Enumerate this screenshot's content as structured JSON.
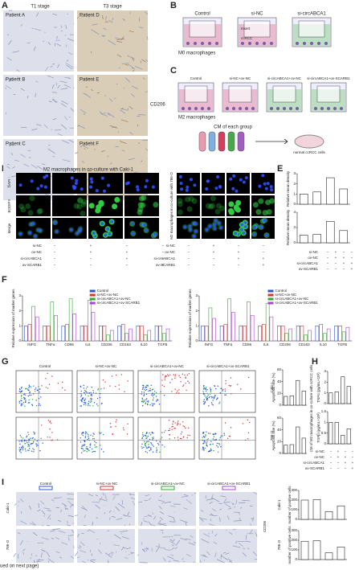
{
  "panel_labels": [
    "A",
    "B",
    "C",
    "D",
    "E",
    "F",
    "G",
    "H",
    "I"
  ],
  "A": {
    "columns": [
      "T1 stage",
      "T3 stage"
    ],
    "patients": [
      "Patient A",
      "Patient D",
      "Patient B",
      "Patient E",
      "Patient C",
      "Patient F"
    ],
    "marker": "CD206"
  },
  "B": {
    "groups": [
      "Control",
      "si-NC",
      "si-circABCA1"
    ],
    "cells": "M0 macrophages",
    "parts": [
      "Insert",
      "ccRCC"
    ]
  },
  "C": {
    "groups": [
      "Control",
      "si-NC+ov-NC",
      "si-circABCA1+ov-NC",
      "si-circABCA1+ov-SCARB1"
    ],
    "cells": "M2 macrophages",
    "cm": "CM of each group",
    "target": "normal ccRCC cells"
  },
  "D": {
    "rows": [
      "DAPI",
      "BODIPY",
      "Merge"
    ],
    "titles": [
      "M2 macrophages in co-culture with Caki-1",
      "M2 macrophages in co-culture with 786-O"
    ]
  },
  "conditions": [
    {
      "name": "si-NC",
      "signs": [
        "−",
        "+",
        "−",
        "−"
      ]
    },
    {
      "name": "ov-NC",
      "signs": [
        "−",
        "+",
        "+",
        "−"
      ]
    },
    {
      "name": "si-circABCA1",
      "signs": [
        "−",
        "−",
        "+",
        "+"
      ]
    },
    {
      "name": "ov-SCARB1",
      "signs": [
        "−",
        "−",
        "−",
        "+"
      ]
    }
  ],
  "G": {
    "groups": [
      "Control",
      "si-NC+ov-NC",
      "si-circABCA1+ov-NC",
      "si-circABCA1+ov-SCARB1"
    ],
    "rows": [
      "Caki-1",
      "786-O"
    ]
  },
  "H": {
    "title": "CM of M2 macrophages in co-culture with ccRCC cells"
  },
  "I": {
    "groups": [
      "Control",
      "si-NC+ov-NC",
      "si-circABCA1+ov-NC",
      "si-circABCA1+ov-SCARB1"
    ],
    "rows": [
      "Caki-1",
      "786-O"
    ],
    "marker": "CD206"
  },
  "footer": "ued on next page)",
  "chart_data": [
    {
      "type": "bar",
      "ylabel": "Relative mean density",
      "values": [
        1.0,
        1.2,
        2.6,
        1.5
      ],
      "colors": [
        "#ffffff",
        "#ffffff",
        "#ffffff",
        "#ffffff"
      ],
      "ylim": [
        0,
        3
      ],
      "yticks": [
        0,
        1,
        2,
        3
      ]
    },
    {
      "type": "bar",
      "ylabel": "Relative mean density",
      "values": [
        1.0,
        1.1,
        2.8,
        1.6
      ],
      "colors": [
        "#ffffff",
        "#ffffff",
        "#ffffff",
        "#ffffff"
      ],
      "ylim": [
        0,
        4
      ],
      "yticks": [
        0,
        2,
        4
      ]
    },
    {
      "type": "grouped",
      "ylabel": "Relative expression of marker genes",
      "categories": [
        "INFG",
        "TNFα",
        "CD86",
        "IL6",
        "CD206",
        "CD163",
        "IL10",
        "TGFB"
      ],
      "ylim": [
        0,
        3
      ],
      "yticks": [
        0,
        1,
        2,
        3
      ],
      "series": [
        {
          "name": "Control",
          "color": "#3355cc",
          "values": [
            1,
            1,
            1,
            1,
            1,
            1,
            1,
            1
          ]
        },
        {
          "name": "si-NC+ov-NC",
          "color": "#dd3333",
          "values": [
            1.1,
            1.0,
            1.1,
            1.0,
            1.0,
            1.1,
            1.0,
            1.0
          ]
        },
        {
          "name": "si-circABCA1+ov-NC",
          "color": "#33aa33",
          "values": [
            2.3,
            2.6,
            2.8,
            2.7,
            0.4,
            0.5,
            0.4,
            0.5
          ]
        },
        {
          "name": "si-circABCA1+ov-SCARB1",
          "color": "#aa44cc",
          "values": [
            1.6,
            1.7,
            1.8,
            1.9,
            0.7,
            0.8,
            0.7,
            0.8
          ]
        }
      ]
    },
    {
      "type": "grouped",
      "ylabel": "Relative expression of marker genes",
      "categories": [
        "INFG",
        "TNFα",
        "CD86",
        "IL6",
        "CD206",
        "CD163",
        "IL10",
        "TGFB"
      ],
      "ylim": [
        0,
        3
      ],
      "yticks": [
        0,
        1,
        2,
        3
      ],
      "series": [
        {
          "name": "Control",
          "color": "#3355cc",
          "values": [
            1,
            1,
            1,
            1,
            1,
            1,
            1,
            1
          ]
        },
        {
          "name": "si-NC+ov-NC",
          "color": "#dd3333",
          "values": [
            1.0,
            1.1,
            1.0,
            1.1,
            1.0,
            1.0,
            1.1,
            1.0
          ]
        },
        {
          "name": "si-circABCA1+ov-NC",
          "color": "#33aa33",
          "values": [
            2.2,
            2.8,
            2.6,
            2.5,
            0.5,
            0.4,
            0.5,
            0.6
          ]
        },
        {
          "name": "si-circABCA1+ov-SCARB1",
          "color": "#aa44cc",
          "values": [
            1.5,
            1.9,
            1.7,
            1.6,
            0.8,
            0.7,
            0.8,
            0.9
          ]
        }
      ]
    },
    {
      "type": "bar",
      "ylabel": "Apoptosis rate (%)",
      "values": [
        15,
        16,
        42,
        24
      ],
      "colors": [
        "#ffffff",
        "#ffffff",
        "#ffffff",
        "#ffffff"
      ],
      "ylim": [
        0,
        60
      ],
      "yticks": [
        0,
        20,
        40,
        60
      ]
    },
    {
      "type": "bar",
      "ylabel": "Apoptosis rate (%)",
      "values": [
        14,
        15,
        45,
        26
      ],
      "colors": [
        "#ffffff",
        "#ffffff",
        "#ffffff",
        "#ffffff"
      ],
      "ylim": [
        0,
        60
      ],
      "yticks": [
        0,
        20,
        40,
        60
      ]
    },
    {
      "type": "bar",
      "ylabel": "TNFα (pg/mL×10³)",
      "values": [
        1.0,
        1.1,
        2.5,
        1.6
      ],
      "colors": [
        "#ffffff",
        "#ffffff",
        "#ffffff",
        "#ffffff"
      ],
      "ylim": [
        0,
        3
      ],
      "yticks": [
        0,
        1,
        2,
        3
      ]
    },
    {
      "type": "bar",
      "ylabel": "TGFβ (pg/mL×10³)",
      "values": [
        1.0,
        1.0,
        0.4,
        0.7
      ],
      "colors": [
        "#ffffff",
        "#ffffff",
        "#ffffff",
        "#ffffff"
      ],
      "ylim": [
        0,
        1.5
      ],
      "yticks": [
        0,
        0.5,
        1,
        1.5
      ]
    },
    {
      "type": "bar",
      "ylabel": "number of positive cells",
      "values": [
        200,
        205,
        80,
        140
      ],
      "colors": [
        "#ffffff",
        "#ffffff",
        "#ffffff",
        "#ffffff"
      ],
      "ylim": [
        0,
        300
      ],
      "yticks": [
        0,
        100,
        200,
        300
      ]
    },
    {
      "type": "bar",
      "ylabel": "number of positive cells",
      "values": [
        190,
        195,
        70,
        130
      ],
      "colors": [
        "#ffffff",
        "#ffffff",
        "#ffffff",
        "#ffffff"
      ],
      "ylim": [
        0,
        300
      ],
      "yticks": [
        0,
        100,
        200,
        300
      ]
    }
  ]
}
